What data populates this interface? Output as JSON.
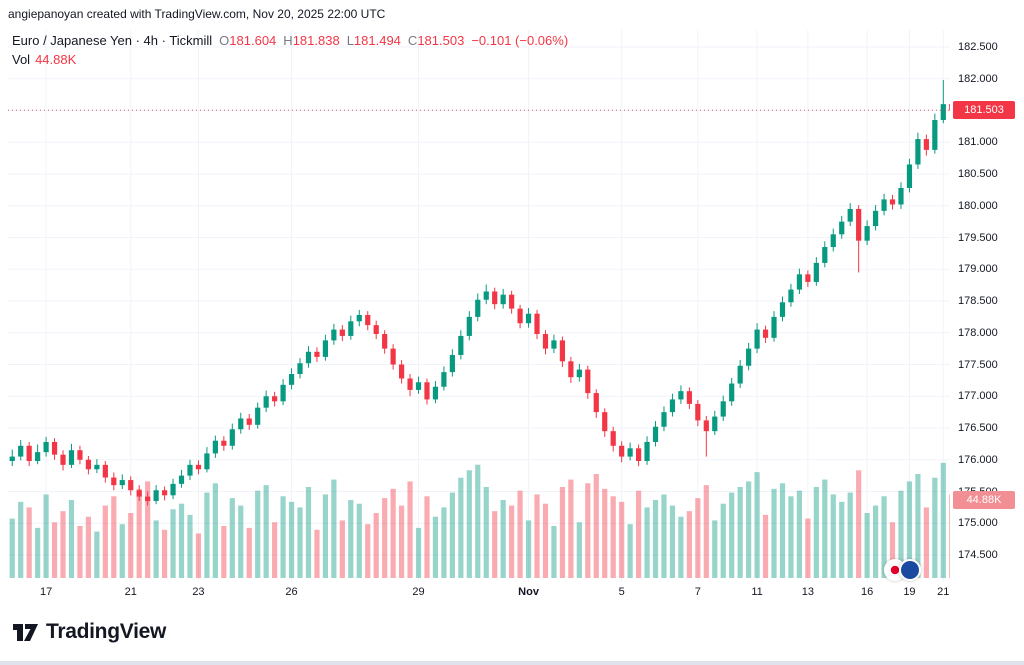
{
  "attribution": "angiepanoyan created with TradingView.com, Nov 20, 2025 22:00 UTC",
  "legend": {
    "title": "Euro / Japanese Yen · 4h · Tickmill",
    "o_label": "O",
    "o_value": "181.604",
    "h_label": "H",
    "h_value": "181.838",
    "l_label": "L",
    "l_value": "181.494",
    "c_label": "C",
    "c_value": "181.503",
    "change": "−0.101 (−0.06%)",
    "vol_label": "Vol",
    "vol_value": "44.88K"
  },
  "price_axis": {
    "last_price_badge": "181.503",
    "volume_badge": "44.88K"
  },
  "footer": {
    "brand": "TradingView"
  },
  "colors": {
    "up": "#089981",
    "down": "#f23645",
    "grid": "#f0f3fa",
    "text": "#131722",
    "muted": "#787b86",
    "price_badge_bg": "#f23645",
    "volume_badge_bg": "#f28f94"
  },
  "chart_data": {
    "type": "candlestick+volume",
    "title": "Euro / Japanese Yen, 4h, Tickmill",
    "ylim": [
      174.5,
      182.5
    ],
    "y_step": 0.5,
    "grid": true,
    "last_price": 181.503,
    "last_volume_k": 44.88,
    "y_tick_labels": [
      "182.500",
      "182.000",
      "181.500",
      "181.000",
      "180.500",
      "180.000",
      "179.500",
      "179.000",
      "178.500",
      "178.000",
      "177.500",
      "177.000",
      "176.500",
      "176.000",
      "175.500",
      "175.000",
      "174.500"
    ],
    "x_ticks": [
      {
        "i": 4,
        "label": "17"
      },
      {
        "i": 14,
        "label": "21"
      },
      {
        "i": 22,
        "label": "23"
      },
      {
        "i": 33,
        "label": "26"
      },
      {
        "i": 48,
        "label": "29"
      },
      {
        "i": 61,
        "label": "Nov",
        "bold": true
      },
      {
        "i": 72,
        "label": "5"
      },
      {
        "i": 81,
        "label": "7"
      },
      {
        "i": 88,
        "label": "11"
      },
      {
        "i": 94,
        "label": "13"
      },
      {
        "i": 101,
        "label": "16"
      },
      {
        "i": 106,
        "label": "19"
      },
      {
        "i": 110,
        "label": "21"
      }
    ],
    "candles_format": [
      "open",
      "high",
      "low",
      "close",
      "volume_k"
    ],
    "candles": [
      [
        175.98,
        176.16,
        175.9,
        176.05,
        32
      ],
      [
        176.05,
        176.31,
        175.99,
        176.22,
        41
      ],
      [
        176.22,
        176.28,
        175.9,
        175.98,
        38
      ],
      [
        175.98,
        176.24,
        175.93,
        176.12,
        27
      ],
      [
        176.12,
        176.36,
        176.05,
        176.28,
        45
      ],
      [
        176.28,
        176.34,
        176.0,
        176.08,
        30
      ],
      [
        176.08,
        176.15,
        175.83,
        175.92,
        36
      ],
      [
        175.92,
        176.25,
        175.87,
        176.15,
        42
      ],
      [
        176.15,
        176.22,
        175.93,
        176.0,
        28
      ],
      [
        176.0,
        176.06,
        175.77,
        175.85,
        33
      ],
      [
        175.85,
        176.01,
        175.79,
        175.92,
        25
      ],
      [
        175.92,
        175.98,
        175.64,
        175.72,
        39
      ],
      [
        175.72,
        175.8,
        175.52,
        175.6,
        44
      ],
      [
        175.6,
        175.77,
        175.54,
        175.68,
        29
      ],
      [
        175.68,
        175.74,
        175.44,
        175.52,
        35
      ],
      [
        175.52,
        175.6,
        175.35,
        175.42,
        48
      ],
      [
        175.42,
        175.5,
        175.28,
        175.35,
        52
      ],
      [
        175.35,
        175.6,
        175.3,
        175.52,
        31
      ],
      [
        175.52,
        175.58,
        175.36,
        175.44,
        26
      ],
      [
        175.44,
        175.7,
        175.38,
        175.62,
        37
      ],
      [
        175.62,
        175.84,
        175.56,
        175.75,
        40
      ],
      [
        175.75,
        176.0,
        175.68,
        175.92,
        34
      ],
      [
        175.92,
        175.99,
        175.77,
        175.85,
        24
      ],
      [
        175.85,
        176.2,
        175.8,
        176.1,
        46
      ],
      [
        176.1,
        176.38,
        176.03,
        176.3,
        51
      ],
      [
        176.3,
        176.37,
        176.14,
        176.22,
        28
      ],
      [
        176.22,
        176.57,
        176.16,
        176.48,
        43
      ],
      [
        176.48,
        176.74,
        176.41,
        176.65,
        39
      ],
      [
        176.65,
        176.72,
        176.47,
        176.55,
        27
      ],
      [
        176.55,
        176.9,
        176.49,
        176.82,
        47
      ],
      [
        176.82,
        177.09,
        176.75,
        177.0,
        50
      ],
      [
        177.0,
        177.07,
        176.84,
        176.92,
        30
      ],
      [
        176.92,
        177.27,
        176.86,
        177.18,
        44
      ],
      [
        177.18,
        177.44,
        177.11,
        177.35,
        41
      ],
      [
        177.35,
        177.6,
        177.28,
        177.52,
        38
      ],
      [
        177.52,
        177.79,
        177.45,
        177.7,
        49
      ],
      [
        177.7,
        177.77,
        177.54,
        177.62,
        26
      ],
      [
        177.62,
        177.97,
        177.56,
        177.88,
        45
      ],
      [
        177.88,
        178.14,
        177.81,
        178.05,
        53
      ],
      [
        178.05,
        178.12,
        177.87,
        177.95,
        31
      ],
      [
        177.95,
        178.27,
        177.89,
        178.18,
        42
      ],
      [
        178.18,
        178.36,
        178.1,
        178.28,
        40
      ],
      [
        178.28,
        178.34,
        178.04,
        178.12,
        29
      ],
      [
        178.12,
        178.19,
        177.9,
        177.98,
        35
      ],
      [
        177.98,
        178.04,
        177.67,
        177.75,
        43
      ],
      [
        177.75,
        177.82,
        177.42,
        177.5,
        48
      ],
      [
        177.5,
        177.57,
        177.2,
        177.28,
        39
      ],
      [
        177.28,
        177.35,
        177.0,
        177.1,
        52
      ],
      [
        177.1,
        177.31,
        177.04,
        177.22,
        27
      ],
      [
        177.22,
        177.28,
        176.87,
        176.95,
        44
      ],
      [
        176.95,
        177.24,
        176.89,
        177.15,
        33
      ],
      [
        177.15,
        177.47,
        177.09,
        177.38,
        38
      ],
      [
        177.38,
        177.74,
        177.31,
        177.65,
        46
      ],
      [
        177.65,
        178.04,
        177.58,
        177.95,
        54
      ],
      [
        177.95,
        178.34,
        177.88,
        178.25,
        58
      ],
      [
        178.25,
        178.62,
        178.18,
        178.52,
        61
      ],
      [
        178.52,
        178.76,
        178.45,
        178.65,
        49
      ],
      [
        178.65,
        178.71,
        178.37,
        178.45,
        36
      ],
      [
        178.45,
        178.69,
        178.38,
        178.6,
        42
      ],
      [
        178.6,
        178.66,
        178.3,
        178.38,
        39
      ],
      [
        178.38,
        178.44,
        178.07,
        178.15,
        47
      ],
      [
        178.15,
        178.39,
        178.08,
        178.3,
        31
      ],
      [
        178.3,
        178.36,
        177.9,
        177.98,
        45
      ],
      [
        177.98,
        178.04,
        177.66,
        177.75,
        40
      ],
      [
        177.75,
        177.97,
        177.68,
        177.88,
        28
      ],
      [
        177.88,
        177.94,
        177.46,
        177.55,
        49
      ],
      [
        177.55,
        177.62,
        177.21,
        177.3,
        53
      ],
      [
        177.3,
        177.51,
        177.23,
        177.42,
        30
      ],
      [
        177.42,
        177.48,
        176.96,
        177.05,
        51
      ],
      [
        177.05,
        177.11,
        176.66,
        176.75,
        56
      ],
      [
        176.75,
        176.81,
        176.36,
        176.45,
        48
      ],
      [
        176.45,
        176.52,
        176.13,
        176.22,
        44
      ],
      [
        176.22,
        176.29,
        175.96,
        176.05,
        41
      ],
      [
        176.05,
        176.27,
        175.99,
        176.18,
        29
      ],
      [
        176.18,
        176.24,
        175.9,
        175.98,
        47
      ],
      [
        175.98,
        176.37,
        175.92,
        176.28,
        38
      ],
      [
        176.28,
        176.61,
        176.21,
        176.52,
        42
      ],
      [
        176.52,
        176.84,
        176.45,
        176.75,
        45
      ],
      [
        176.75,
        177.04,
        176.68,
        176.95,
        39
      ],
      [
        176.95,
        177.17,
        176.88,
        177.08,
        33
      ],
      [
        177.08,
        177.14,
        176.8,
        176.88,
        36
      ],
      [
        176.88,
        176.94,
        176.53,
        176.62,
        43
      ],
      [
        176.62,
        176.69,
        176.05,
        176.45,
        50
      ],
      [
        176.45,
        176.77,
        176.39,
        176.68,
        31
      ],
      [
        176.68,
        177.01,
        176.61,
        176.92,
        40
      ],
      [
        176.92,
        177.29,
        176.85,
        177.2,
        46
      ],
      [
        177.2,
        177.57,
        177.13,
        177.48,
        49
      ],
      [
        177.48,
        177.84,
        177.41,
        177.75,
        52
      ],
      [
        177.75,
        178.15,
        177.68,
        178.05,
        57
      ],
      [
        178.05,
        178.11,
        177.84,
        177.92,
        34
      ],
      [
        177.92,
        178.34,
        177.86,
        178.25,
        48
      ],
      [
        178.25,
        178.57,
        178.18,
        178.48,
        51
      ],
      [
        178.48,
        178.77,
        178.41,
        178.68,
        44
      ],
      [
        178.68,
        179.01,
        178.61,
        178.92,
        47
      ],
      [
        178.92,
        178.98,
        178.72,
        178.8,
        32
      ],
      [
        178.8,
        179.19,
        178.74,
        179.1,
        49
      ],
      [
        179.1,
        179.44,
        179.03,
        179.35,
        53
      ],
      [
        179.35,
        179.64,
        179.28,
        179.55,
        45
      ],
      [
        179.55,
        179.84,
        179.48,
        179.75,
        41
      ],
      [
        179.75,
        180.04,
        179.68,
        179.95,
        46
      ],
      [
        179.95,
        180.01,
        178.95,
        179.45,
        58
      ],
      [
        179.45,
        179.77,
        179.38,
        179.68,
        35
      ],
      [
        179.68,
        180.01,
        179.61,
        179.92,
        39
      ],
      [
        179.92,
        180.19,
        179.85,
        180.1,
        44
      ],
      [
        180.1,
        180.17,
        179.94,
        180.02,
        30
      ],
      [
        180.02,
        180.37,
        179.95,
        180.28,
        47
      ],
      [
        180.28,
        180.74,
        180.21,
        180.65,
        52
      ],
      [
        180.65,
        181.15,
        180.58,
        181.05,
        56
      ],
      [
        181.05,
        181.12,
        180.79,
        180.88,
        38
      ],
      [
        180.88,
        181.45,
        180.82,
        181.35,
        54
      ],
      [
        181.35,
        181.98,
        181.3,
        181.6,
        62
      ],
      [
        181.604,
        181.838,
        181.494,
        181.503,
        44.88
      ]
    ]
  }
}
